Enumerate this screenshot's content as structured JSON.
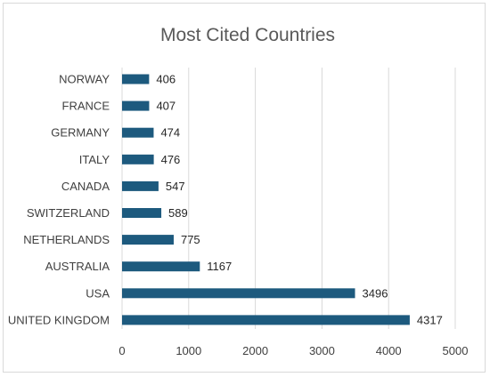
{
  "chart_data": {
    "type": "bar",
    "orientation": "horizontal",
    "title": "Most Cited Countries",
    "categories": [
      "NORWAY",
      "FRANCE",
      "GERMANY",
      "ITALY",
      "CANADA",
      "SWITZERLAND",
      "NETHERLANDS",
      "AUSTRALIA",
      "USA",
      "UNITED KINGDOM"
    ],
    "values": [
      406,
      407,
      474,
      476,
      547,
      589,
      775,
      1167,
      3496,
      4317
    ],
    "xlabel": "",
    "ylabel": "",
    "xlim": [
      0,
      5000
    ],
    "xticks": [
      0,
      1000,
      2000,
      3000,
      4000,
      5000
    ],
    "grid": true,
    "data_labels": true,
    "bar_color": "#1d5a7e",
    "legend": "none"
  }
}
